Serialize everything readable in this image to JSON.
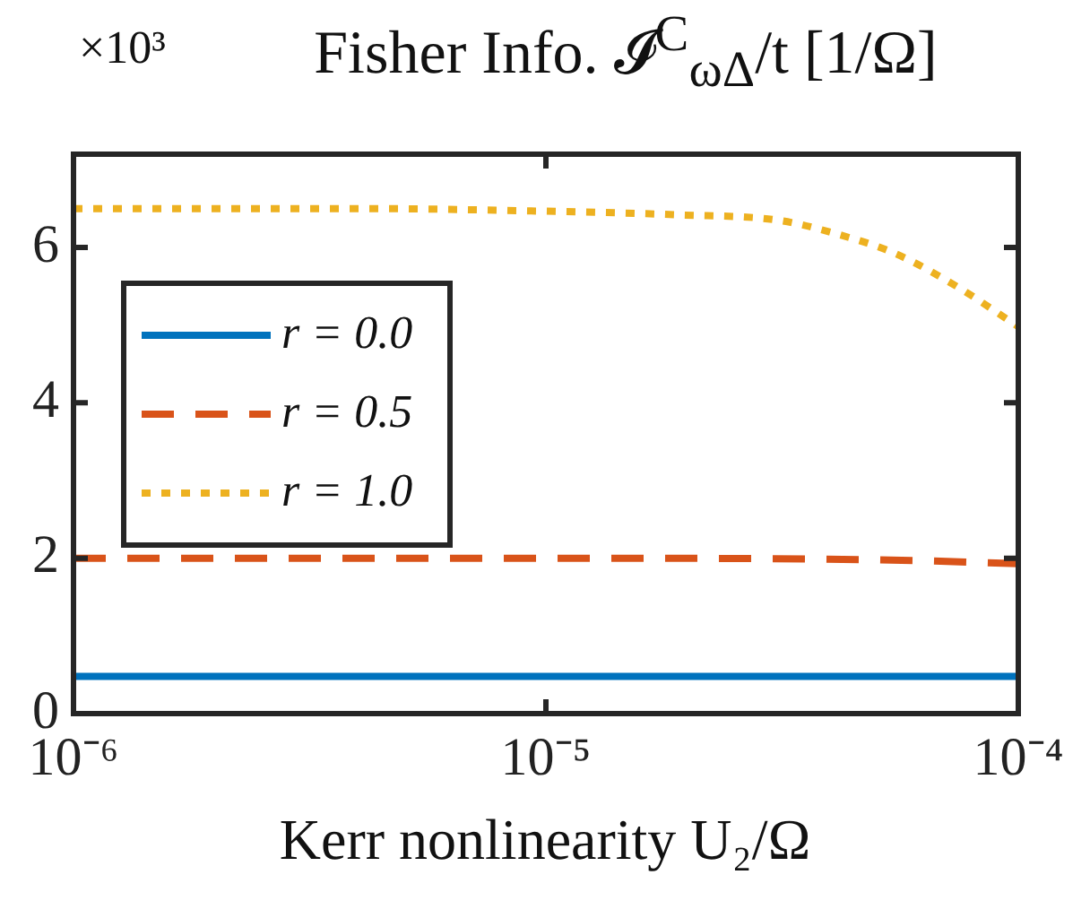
{
  "chart_data": {
    "type": "line",
    "title": "Fisher Info. 𝓘$^{C}$$_{ωΔ}$/t [1/Ω]",
    "xlabel": "Kerr nonlinearity U₂/Ω",
    "annotations": [
      "×10³"
    ],
    "log": "x",
    "grid": false,
    "legend": "top left",
    "marker": "none",
    "xlim": [
      1e-06,
      0.0001
    ],
    "xticks": [
      {
        "value": 1e-06,
        "label": "10⁻⁶"
      },
      {
        "value": 1e-05,
        "label": "10⁻⁵"
      },
      {
        "value": 0.0001,
        "label": "10⁻⁴"
      }
    ],
    "ylim": [
      0,
      7.2
    ],
    "yticks": [
      0,
      2,
      4,
      6
    ],
    "series": [
      {
        "name": "r = 0.0",
        "color": "#0072bd",
        "line_style": "solid",
        "x": [
          1e-06,
          0.0001
        ],
        "values": [
          0.48,
          0.48
        ]
      },
      {
        "name": "r = 0.5",
        "color": "#d95319",
        "line_style": "dashed",
        "x": [
          1e-06,
          1e-05,
          5e-05,
          0.0001
        ],
        "values": [
          2.0,
          2.0,
          1.98,
          1.93
        ]
      },
      {
        "name": "r = 1.0",
        "color": "#edb120",
        "line_style": "dotted",
        "x": [
          1e-06,
          4e-06,
          9.3e-06,
          1.9e-05,
          3.1e-05,
          4.2e-05,
          5.5e-05,
          7.4e-05,
          0.0001
        ],
        "values": [
          6.5,
          6.5,
          6.47,
          6.42,
          6.35,
          6.16,
          5.92,
          5.5,
          4.98
        ]
      }
    ]
  }
}
